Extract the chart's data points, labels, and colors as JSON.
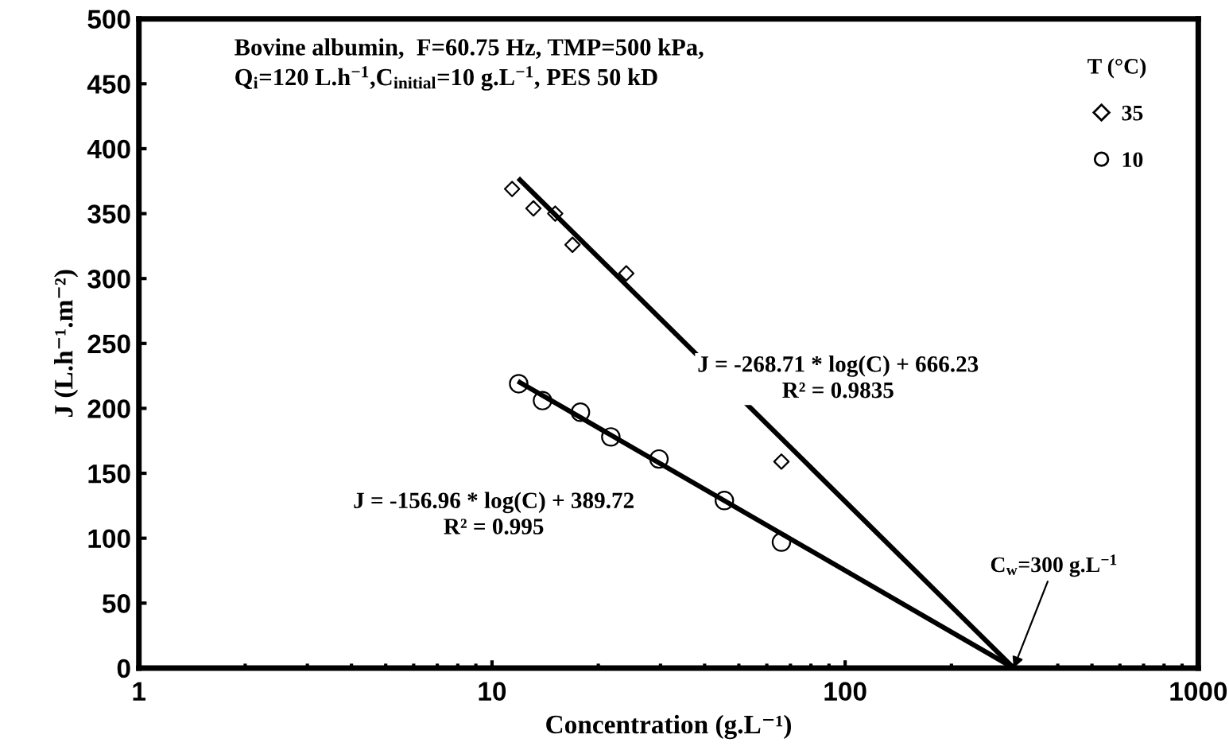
{
  "chart_data": {
    "type": "scatter",
    "xlabel": "Concentration (g.L⁻¹)",
    "ylabel": "J (L.h⁻¹.m⁻²)",
    "legend_title": "T (°C)",
    "log": "x",
    "xlim": [
      1,
      1000
    ],
    "xticks": [
      1,
      10,
      100,
      1000
    ],
    "ylim": [
      0,
      500
    ],
    "yticks": [
      0,
      50,
      100,
      150,
      200,
      250,
      300,
      350,
      400,
      450,
      500
    ],
    "grid": false,
    "legend": "top right",
    "series": [
      {
        "name": "35",
        "color": "#000000",
        "marker": "diamond",
        "x": [
          11.4,
          13.1,
          15.1,
          16.9,
          24,
          66
        ],
        "values": [
          369,
          354,
          350,
          326,
          304,
          159
        ]
      },
      {
        "name": "10",
        "color": "#000000",
        "marker": "circle",
        "x": [
          11.9,
          13.9,
          17.8,
          21.7,
          29.7,
          45.5,
          66
        ],
        "values": [
          219,
          206,
          197,
          178,
          161,
          129,
          97
        ]
      },
      {
        "type": "line",
        "color": "#000000",
        "marker": "none",
        "line_style": "solid",
        "x": [
          12,
          300
        ],
        "values": [
          376,
          0
        ]
      },
      {
        "type": "line",
        "color": "#000000",
        "marker": "none",
        "line_style": "solid",
        "x": [
          12,
          300
        ],
        "values": [
          220,
          0
        ]
      }
    ],
    "annotations": [
      "Bovine albumin,  F=60.75 Hz, TMP=500 kPa,\nQ$_{i}$=120 L.h$^{−1}$,C$_{initial}$=10 g.L$^{−1}$, PES 50 kD",
      "J = -268.71 * log(C) + 666.23\nR² = 0.9835",
      "J = -156.96 * log(C) + 389.72\nR² = 0.995",
      {
        "text": "C$_{w}$=300 g.L$^{−1}$",
        "x": 300,
        "y": 0
      }
    ]
  }
}
